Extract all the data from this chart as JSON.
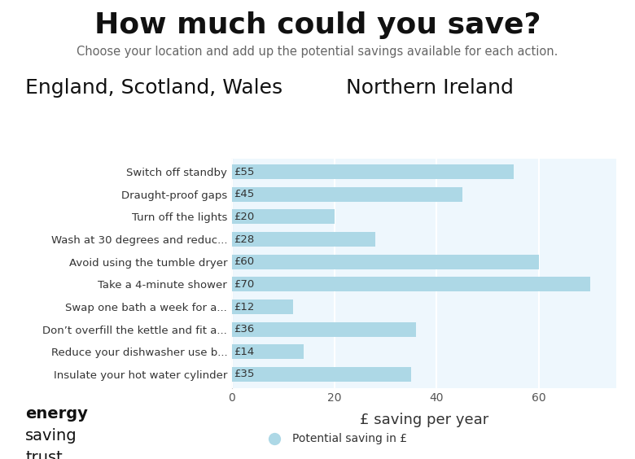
{
  "title": "How much could you save?",
  "subtitle": "Choose your location and add up the potential savings available for each action.",
  "region_label_left": "England, Scotland, Wales",
  "region_label_right": "Northern Ireland",
  "xlabel": "£ saving per year",
  "categories": [
    "Switch off standby",
    "Draught-proof gaps",
    "Turn off the lights",
    "Wash at 30 degrees and reduc...",
    "Avoid using the tumble dryer",
    "Take a 4-minute shower",
    "Swap one bath a week for a...",
    "Don’t overfill the kettle and fit a...",
    "Reduce your dishwasher use b...",
    "Insulate your hot water cylinder"
  ],
  "values": [
    55,
    45,
    20,
    28,
    60,
    70,
    12,
    36,
    14,
    35
  ],
  "labels": [
    "£55",
    "£45",
    "£20",
    "£28",
    "£60",
    "£70",
    "£12",
    "£36",
    "£14",
    "£35"
  ],
  "bar_color": "#add8e6",
  "xlim": [
    0,
    75
  ],
  "xticks": [
    0,
    20,
    40,
    60
  ],
  "background_color": "#ffffff",
  "title_fontsize": 26,
  "subtitle_fontsize": 10.5,
  "region_fontsize": 18,
  "bar_label_fontsize": 9.5,
  "cat_label_fontsize": 9.5,
  "xlabel_fontsize": 13,
  "tick_fontsize": 10,
  "legend_label": "Potential saving in £",
  "legend_fontsize": 10,
  "logo_lines": [
    "energy",
    "saving",
    "trust"
  ],
  "logo_bold": [
    true,
    false,
    false
  ],
  "logo_fontsize": 14,
  "bar_height": 0.65,
  "grid_color": "#ffffff",
  "spine_color": "#cccccc",
  "text_color": "#333333",
  "title_color": "#111111",
  "subtitle_color": "#666666"
}
